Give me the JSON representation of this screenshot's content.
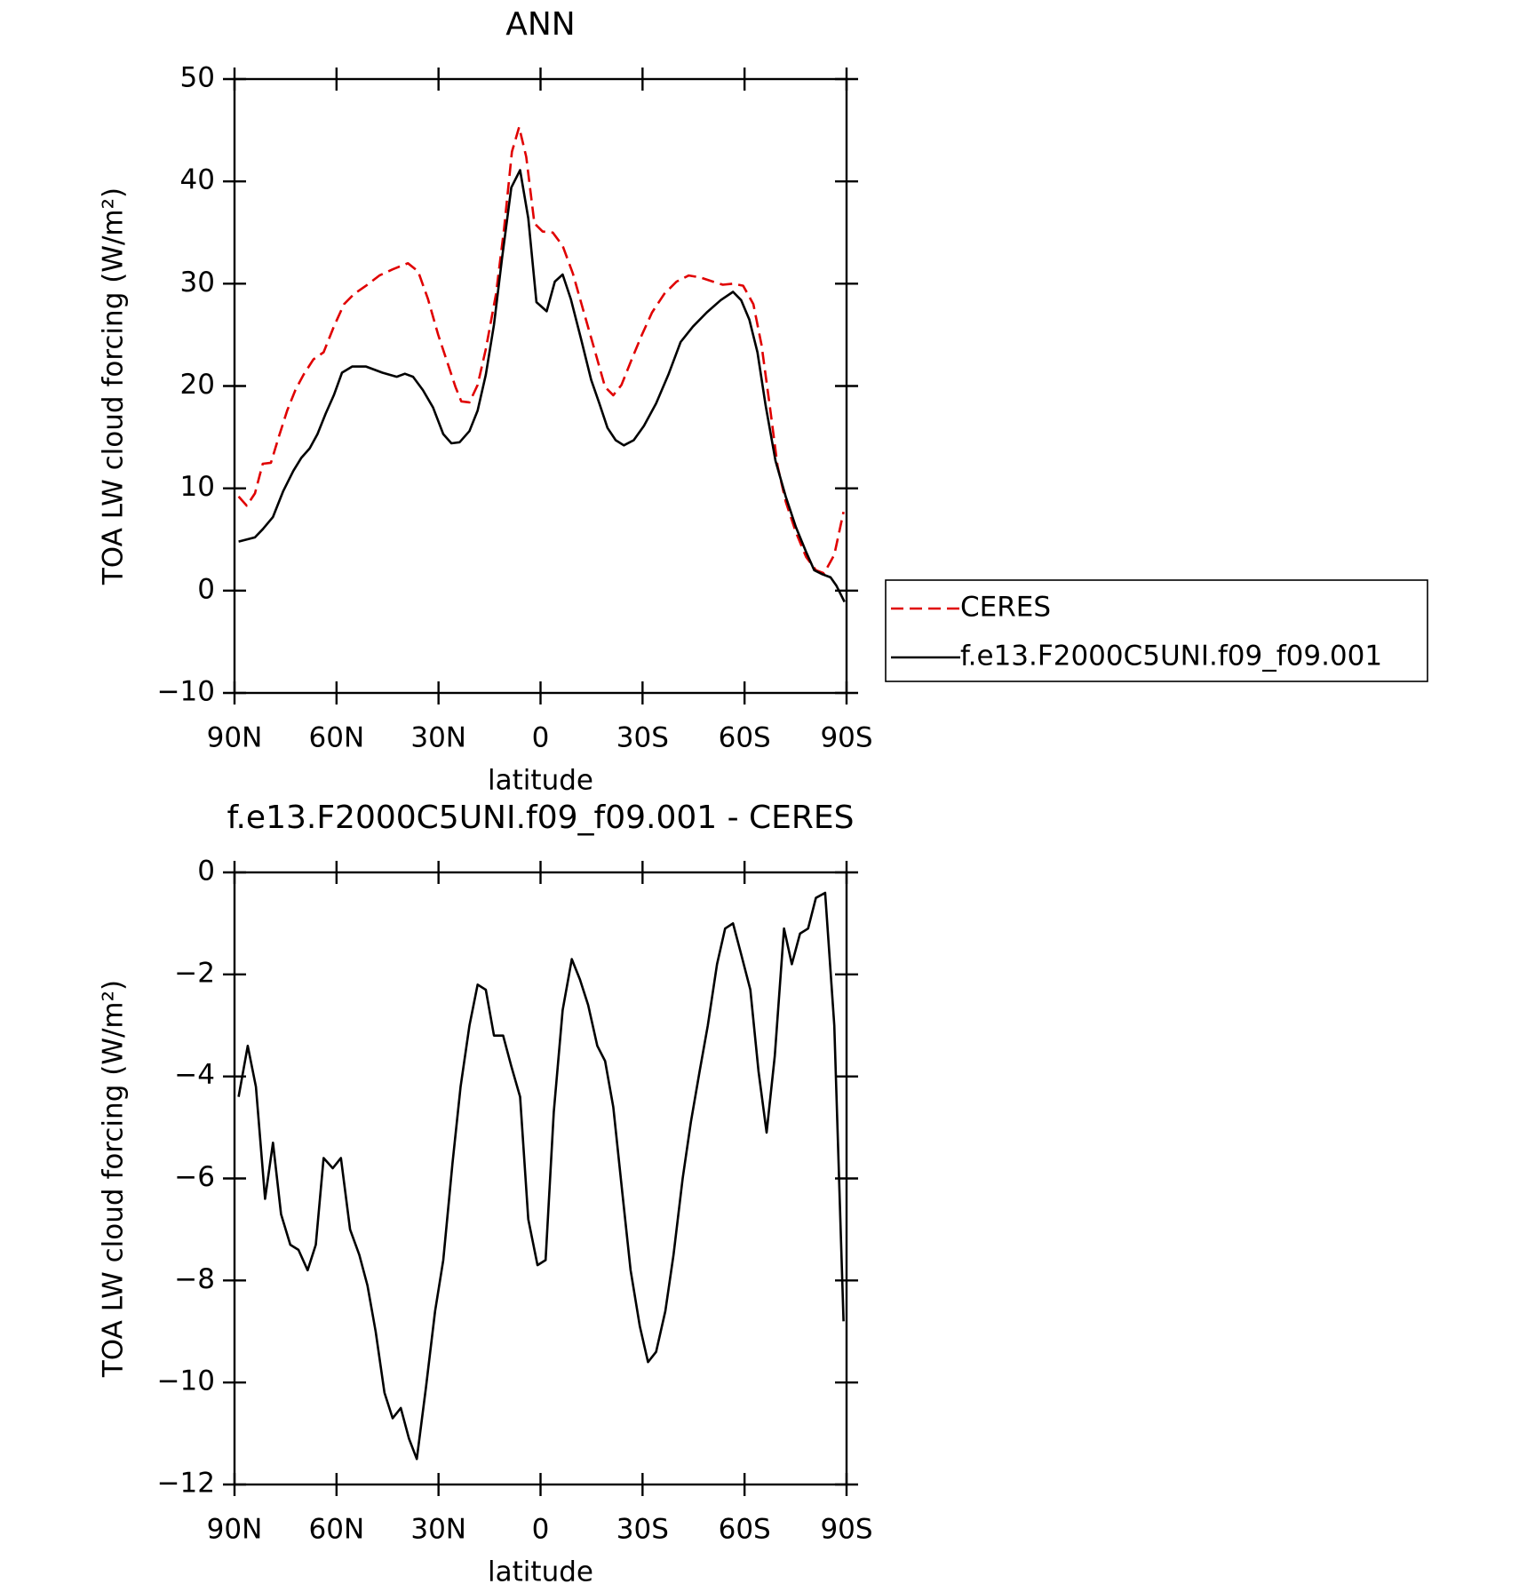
{
  "chart_data": [
    {
      "type": "line",
      "title": "ANN",
      "xlabel": "latitude",
      "ylabel": "TOA LW cloud forcing (W/m²)",
      "xlim": [
        90,
        -90
      ],
      "xticks": [
        {
          "value": 90,
          "label": "90N"
        },
        {
          "value": 60,
          "label": "60N"
        },
        {
          "value": 30,
          "label": "30N"
        },
        0,
        {
          "value": -30,
          "label": "30S"
        },
        {
          "value": -60,
          "label": "60S"
        },
        {
          "value": -90,
          "label": "90S"
        }
      ],
      "ylim": [
        -10,
        50
      ],
      "yticks": [
        {
          "value": -10,
          "label": "−10"
        },
        0,
        10,
        20,
        30,
        40,
        50
      ],
      "legend": "right",
      "series": [
        {
          "name": "CERES",
          "color": "#e00000",
          "dash": true,
          "x": [
            88.8,
            86.4,
            84,
            81.7,
            79.3,
            76.9,
            74.5,
            72.1,
            69.7,
            66.8,
            63.8,
            60.8,
            57.8,
            54.8,
            51.3,
            47.4,
            43.5,
            39,
            36,
            33.1,
            30.1,
            27.1,
            25,
            23.3,
            20.9,
            18.5,
            16.1,
            13.1,
            10.7,
            8.4,
            6.3,
            4.2,
            1.8,
            -0.6,
            -3.6,
            -6.5,
            -9.5,
            -12.5,
            -15.5,
            -19,
            -21.4,
            -23.8,
            -26.8,
            -29.8,
            -32.8,
            -36.4,
            -40,
            -43.6,
            -47.1,
            -50.7,
            -53.6,
            -56.6,
            -59.6,
            -62.6,
            -65,
            -67.4,
            -69.7,
            -72.1,
            -75.1,
            -78.1,
            -81,
            -83.4,
            -86.4,
            -89.1
          ],
          "values": [
            9.2,
            8.3,
            9.5,
            12.4,
            12.5,
            15.1,
            17.6,
            19.6,
            21.1,
            22.6,
            23.3,
            25.8,
            28.0,
            29.0,
            29.8,
            30.8,
            31.4,
            32,
            31.2,
            28.5,
            25,
            22,
            19.9,
            18.5,
            18.4,
            20.1,
            23.6,
            29,
            35.4,
            42.9,
            45.3,
            42.4,
            35.9,
            35.1,
            35,
            33.7,
            31,
            27.5,
            24,
            19.9,
            19.1,
            20.1,
            22.6,
            25,
            27.2,
            29,
            30.2,
            30.8,
            30.6,
            30.2,
            29.9,
            30,
            29.8,
            28,
            24,
            18.1,
            12.2,
            8.7,
            5.7,
            3.3,
            2,
            1.7,
            3.5,
            7.7
          ]
        },
        {
          "name": "f.e13.F2000C5UNI.f09_f09.001",
          "color": "#000000",
          "dash": false,
          "x": [
            88.8,
            84,
            81.7,
            78.7,
            75.7,
            72.7,
            70.3,
            67.9,
            65.6,
            63.2,
            60.8,
            58.4,
            55.4,
            51.3,
            46.5,
            42.3,
            39.9,
            37.5,
            34.6,
            31.6,
            28.6,
            26.2,
            23.8,
            20.9,
            18.5,
            16.1,
            13.7,
            11.3,
            8.6,
            6,
            3.6,
            1.2,
            -1.8,
            -4.2,
            -6.5,
            -8.9,
            -11.9,
            -14.9,
            -17.3,
            -19.7,
            -22.1,
            -24.5,
            -27.4,
            -30.4,
            -34,
            -37.6,
            -41.2,
            -44.8,
            -48.9,
            -53,
            -56.6,
            -59,
            -61.4,
            -63.8,
            -66.2,
            -69.1,
            -72.1,
            -75.1,
            -78.1,
            -80.5,
            -82.9,
            -85.3,
            -87,
            -89.4
          ],
          "values": [
            4.8,
            5.2,
            6,
            7.2,
            9.7,
            11.7,
            13,
            13.9,
            15.3,
            17.3,
            19.1,
            21.3,
            21.9,
            21.9,
            21.3,
            20.9,
            21.2,
            20.9,
            19.6,
            17.9,
            15.3,
            14.4,
            14.5,
            15.6,
            17.6,
            21.1,
            26,
            32.5,
            39.4,
            41.1,
            36.4,
            28.2,
            27.3,
            30.2,
            30.9,
            28.5,
            24.6,
            20.6,
            18.3,
            15.9,
            14.7,
            14.2,
            14.7,
            16.1,
            18.3,
            21.1,
            24.3,
            25.8,
            27.2,
            28.4,
            29.2,
            28.4,
            26.5,
            23.3,
            18.1,
            12.7,
            9.2,
            6.2,
            3.8,
            2,
            1.6,
            1.3,
            0.5,
            -1.1
          ]
        }
      ]
    },
    {
      "type": "line",
      "title": "f.e13.F2000C5UNI.f09_f09.001 - CERES",
      "xlabel": "latitude",
      "ylabel": "TOA LW cloud forcing (W/m²)",
      "xlim": [
        90,
        -90
      ],
      "xticks": [
        {
          "value": 90,
          "label": "90N"
        },
        {
          "value": 60,
          "label": "60N"
        },
        {
          "value": 30,
          "label": "30N"
        },
        0,
        {
          "value": -30,
          "label": "30S"
        },
        {
          "value": -60,
          "label": "60S"
        },
        {
          "value": -90,
          "label": "90S"
        }
      ],
      "ylim": [
        -12,
        0
      ],
      "yticks": [
        {
          "value": -12,
          "label": "−12"
        },
        {
          "value": -10,
          "label": "−10"
        },
        {
          "value": -8,
          "label": "−8"
        },
        {
          "value": -6,
          "label": "−6"
        },
        {
          "value": -4,
          "label": "−4"
        },
        {
          "value": -2,
          "label": "−2"
        },
        0
      ],
      "series": [
        {
          "color": "#000000",
          "dash": false,
          "x": [
            88.8,
            86.1,
            83.7,
            81,
            78.7,
            76.3,
            73.6,
            71.2,
            68.5,
            66.1,
            63.8,
            61.1,
            58.7,
            56,
            53.3,
            50.9,
            48.5,
            45.9,
            43.5,
            41.1,
            38.7,
            36.4,
            33.7,
            31,
            28.6,
            25.9,
            23.5,
            20.9,
            18.5,
            16.1,
            13.7,
            11,
            8.6,
            6,
            3.6,
            0.9,
            -1.5,
            -3.9,
            -6.5,
            -9.2,
            -11.6,
            -14,
            -16.7,
            -19,
            -21.4,
            -24.1,
            -26.5,
            -29.2,
            -31.6,
            -34,
            -36.7,
            -39.1,
            -41.8,
            -44.2,
            -46.8,
            -49.2,
            -51.9,
            -54.3,
            -56.6,
            -59,
            -61.7,
            -64.1,
            -66.5,
            -68.9,
            -71.6,
            -73.9,
            -76.3,
            -78.7,
            -81,
            -83.7,
            -86.4,
            -89.1
          ],
          "values": [
            -4.4,
            -3.4,
            -4.2,
            -6.4,
            -5.3,
            -6.7,
            -7.3,
            -7.4,
            -7.8,
            -7.3,
            -5.6,
            -5.8,
            -5.6,
            -7,
            -7.5,
            -8.1,
            -9,
            -10.2,
            -10.7,
            -10.5,
            -11.1,
            -11.5,
            -10.1,
            -8.6,
            -7.6,
            -5.7,
            -4.2,
            -3,
            -2.2,
            -2.3,
            -3.2,
            -3.2,
            -3.8,
            -4.4,
            -6.8,
            -7.7,
            -7.6,
            -4.7,
            -2.7,
            -1.7,
            -2.1,
            -2.6,
            -3.4,
            -3.7,
            -4.6,
            -6.3,
            -7.8,
            -8.9,
            -9.6,
            -9.4,
            -8.6,
            -7.5,
            -6,
            -4.9,
            -3.9,
            -3,
            -1.8,
            -1.1,
            -1,
            -1.6,
            -2.3,
            -3.9,
            -5.1,
            -3.6,
            -1.1,
            -1.8,
            -1.2,
            -1.1,
            -0.5,
            -0.4,
            -3,
            -8.8
          ]
        }
      ]
    }
  ]
}
